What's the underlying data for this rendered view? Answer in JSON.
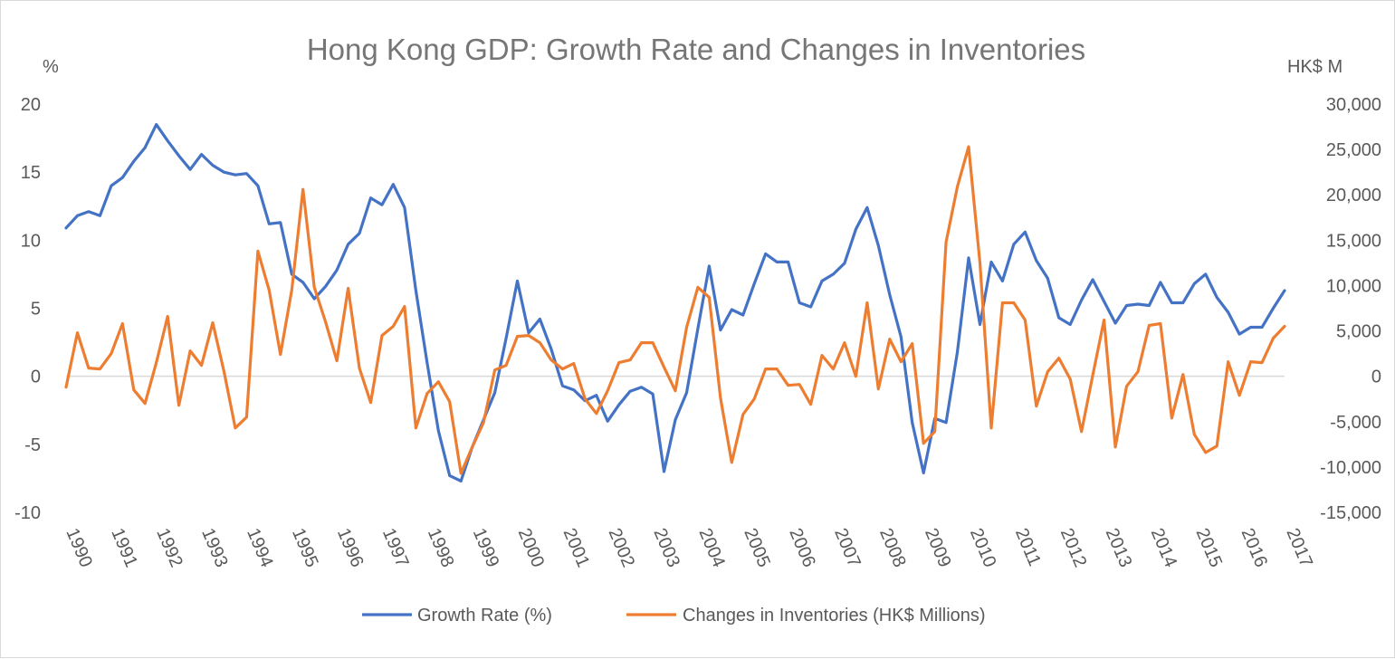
{
  "chart_data": {
    "type": "line",
    "title": "Hong Kong GDP: Growth Rate and Changes in Inventories",
    "left_axis_unit": "%",
    "right_axis_unit": "HK$ M",
    "left_axis": {
      "ylim": [
        -10,
        20
      ],
      "ticks": [
        -10,
        -5,
        0,
        5,
        10,
        15,
        20
      ],
      "tick_labels": [
        "-10",
        "-5",
        "0",
        "5",
        "10",
        "15",
        "20"
      ]
    },
    "right_axis": {
      "ylim": [
        -15000,
        30000
      ],
      "ticks": [
        -15000,
        -10000,
        -5000,
        0,
        5000,
        10000,
        15000,
        20000,
        25000,
        30000
      ],
      "tick_labels": [
        "-15,000",
        "-10,000",
        "-5,000",
        "0",
        "5,000",
        "10,000",
        "15,000",
        "20,000",
        "25,000",
        "30,000"
      ]
    },
    "x_labels": [
      "1990",
      "1991",
      "1992",
      "1993",
      "1994",
      "1995",
      "1996",
      "1997",
      "1998",
      "1999",
      "2000",
      "2001",
      "2002",
      "2003",
      "2004",
      "2005",
      "2006",
      "2007",
      "2008",
      "2009",
      "2010",
      "2011",
      "2012",
      "2013",
      "2014",
      "2015",
      "2016",
      "2017"
    ],
    "gridlines": false,
    "legend_position": "bottom",
    "series": [
      {
        "name": "Growth Rate (%)",
        "axis": "left",
        "color": "#4472c4",
        "values": [
          10.9,
          11.8,
          12.1,
          11.8,
          14.0,
          14.6,
          15.8,
          16.8,
          18.5,
          17.3,
          16.2,
          15.2,
          16.3,
          15.5,
          15.0,
          14.8,
          14.9,
          14.0,
          11.2,
          11.3,
          7.5,
          6.9,
          5.7,
          6.6,
          7.8,
          9.7,
          10.5,
          13.1,
          12.6,
          14.1,
          12.4,
          6.3,
          1.0,
          -4.0,
          -7.3,
          -7.7,
          -5.2,
          -3.2,
          -1.2,
          2.8,
          7.0,
          3.2,
          4.2,
          2.0,
          -0.7,
          -1.0,
          -1.8,
          -1.4,
          -3.3,
          -2.1,
          -1.1,
          -0.8,
          -1.3,
          -7.0,
          -3.2,
          -1.2,
          3.5,
          8.1,
          3.4,
          4.9,
          4.5,
          6.8,
          9.0,
          8.4,
          8.4,
          5.4,
          5.1,
          7.0,
          7.5,
          8.3,
          10.8,
          12.4,
          9.6,
          6.0,
          2.9,
          -3.4,
          -7.1,
          -3.1,
          -3.4,
          1.8,
          8.7,
          3.8,
          8.4,
          7.0,
          9.7,
          10.6,
          8.5,
          7.2,
          4.3,
          3.8,
          5.6,
          7.1,
          5.5,
          3.9,
          5.2,
          5.3,
          5.2,
          6.9,
          5.4,
          5.4,
          6.8,
          7.5,
          5.8,
          4.7,
          3.1,
          3.6,
          3.6,
          5.0,
          6.3
        ]
      },
      {
        "name": "Changes in Inventories (HK$ Millions)",
        "axis": "right",
        "color": "#ed7d31",
        "values": [
          -1200,
          4800,
          900,
          800,
          2500,
          5800,
          -1500,
          -3000,
          1500,
          6600,
          -3200,
          2800,
          1200,
          5900,
          500,
          -5700,
          -4500,
          13800,
          9500,
          2400,
          9500,
          20600,
          9800,
          6000,
          1700,
          9700,
          900,
          -2900,
          4500,
          5500,
          7700,
          -5700,
          -1900,
          -600,
          -2800,
          -10700,
          -7800,
          -5100,
          700,
          1200,
          4400,
          4500,
          3700,
          1800,
          800,
          1400,
          -2500,
          -4100,
          -1600,
          1500,
          1800,
          3700,
          3700,
          1000,
          -1600,
          5400,
          9800,
          8700,
          -2400,
          -9500,
          -4200,
          -2500,
          800,
          800,
          -1000,
          -900,
          -3100,
          2300,
          800,
          3700,
          0,
          8100,
          -1400,
          4100,
          1600,
          3600,
          -7400,
          -6100,
          14800,
          20900,
          25300,
          12500,
          -5700,
          8100,
          8100,
          6200,
          -3300,
          500,
          2000,
          -300,
          -6100,
          100,
          6200,
          -7800,
          -1100,
          500,
          5600,
          5800,
          -4600,
          200,
          -6400,
          -8400,
          -7700,
          1600,
          -2100,
          1600,
          1500,
          4200,
          5500
        ]
      }
    ]
  }
}
